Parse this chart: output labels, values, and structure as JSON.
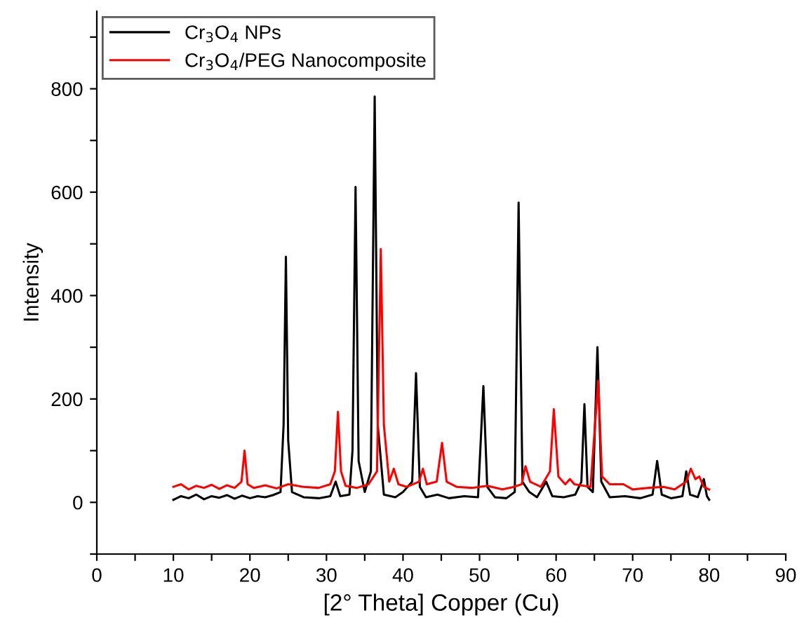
{
  "chart_data": {
    "type": "line",
    "xlabel": "[2° Theta] Copper (Cu)",
    "ylabel": "Intensity",
    "xlim": [
      0,
      90
    ],
    "ylim": [
      -100,
      950
    ],
    "xticks": [
      0,
      {
        "value": 5,
        "label": null
      },
      10,
      {
        "value": 15,
        "label": null
      },
      20,
      {
        "value": 25,
        "label": null
      },
      30,
      {
        "value": 35,
        "label": null
      },
      40,
      {
        "value": 45,
        "label": null
      },
      50,
      {
        "value": 55,
        "label": null
      },
      60,
      {
        "value": 65,
        "label": null
      },
      70,
      {
        "value": 75,
        "label": null
      },
      80,
      {
        "value": 85,
        "label": null
      },
      90
    ],
    "yticks": [
      {
        "value": -100,
        "label": null
      },
      0,
      {
        "value": 100,
        "label": null
      },
      200,
      {
        "value": 300,
        "label": null
      },
      400,
      {
        "value": 500,
        "label": null
      },
      600,
      {
        "value": 700,
        "label": null
      },
      800,
      {
        "value": 900,
        "label": null
      }
    ],
    "legend": "top left",
    "grid": false,
    "marker": "none",
    "line_style": "solid",
    "series": [
      {
        "name": "Cr$_{3}$O$_{4}$ NPs",
        "color": "#000000",
        "x": [
          10,
          11,
          12,
          13,
          14,
          15,
          16,
          17,
          18,
          19,
          20,
          21,
          22,
          23,
          24,
          24.4,
          24.7,
          25.0,
          25.5,
          27,
          29,
          30.5,
          31.2,
          31.8,
          33,
          33.4,
          33.8,
          34.2,
          35,
          35.8,
          36.3,
          36.7,
          37.5,
          39,
          40,
          41.2,
          41.7,
          42.2,
          43,
          44.5,
          46,
          48,
          49.8,
          50.5,
          51.0,
          52,
          53.5,
          54.6,
          55.1,
          55.6,
          56.5,
          57.5,
          58.7,
          59.5,
          61,
          62.5,
          63.3,
          63.7,
          64.1,
          64.8,
          65.4,
          65.9,
          67,
          69,
          71,
          72.6,
          73.2,
          73.8,
          75,
          76.5,
          77.0,
          77.5,
          78.5,
          79.3,
          79.7,
          80
        ],
        "values": [
          5,
          12,
          8,
          15,
          6,
          12,
          9,
          14,
          7,
          13,
          8,
          12,
          10,
          14,
          20,
          150,
          475,
          120,
          20,
          10,
          8,
          12,
          40,
          12,
          15,
          100,
          610,
          80,
          20,
          60,
          785,
          150,
          15,
          10,
          20,
          40,
          250,
          30,
          10,
          15,
          8,
          12,
          10,
          225,
          30,
          10,
          8,
          20,
          580,
          40,
          20,
          10,
          40,
          12,
          10,
          15,
          40,
          190,
          30,
          20,
          300,
          40,
          10,
          12,
          8,
          15,
          80,
          15,
          8,
          12,
          60,
          15,
          10,
          45,
          12,
          5
        ]
      },
      {
        "name": "Cr$_{3}$O$_{4}$/PEG Nanocomposite",
        "color": "#ff0000",
        "x": [
          10,
          11,
          12,
          13,
          14,
          15,
          16,
          17,
          18,
          18.9,
          19.3,
          19.7,
          20.5,
          22,
          23.5,
          25,
          27,
          29,
          30.5,
          31.1,
          31.5,
          31.9,
          32.5,
          34,
          35.5,
          36.6,
          37.1,
          37.5,
          38.2,
          38.8,
          39.4,
          40.5,
          42.1,
          42.6,
          43.1,
          44.4,
          45.1,
          45.7,
          47,
          49,
          51,
          53,
          54.5,
          55.5,
          56.0,
          56.6,
          58,
          59.2,
          59.7,
          60.3,
          61.2,
          61.8,
          62.4,
          64.5,
          65.5,
          66.0,
          67,
          68.8,
          70,
          72,
          74,
          75.5,
          77,
          77.6,
          78.2,
          78.7,
          79.3,
          80
        ],
        "values": [
          30,
          35,
          25,
          32,
          28,
          34,
          26,
          33,
          28,
          40,
          100,
          35,
          28,
          33,
          27,
          35,
          30,
          28,
          35,
          60,
          175,
          60,
          32,
          28,
          35,
          60,
          490,
          150,
          40,
          65,
          35,
          30,
          40,
          65,
          35,
          40,
          115,
          40,
          30,
          28,
          32,
          25,
          30,
          35,
          70,
          40,
          30,
          60,
          180,
          50,
          35,
          45,
          35,
          30,
          235,
          50,
          35,
          35,
          25,
          28,
          30,
          25,
          40,
          65,
          45,
          50,
          30,
          25
        ]
      }
    ]
  }
}
